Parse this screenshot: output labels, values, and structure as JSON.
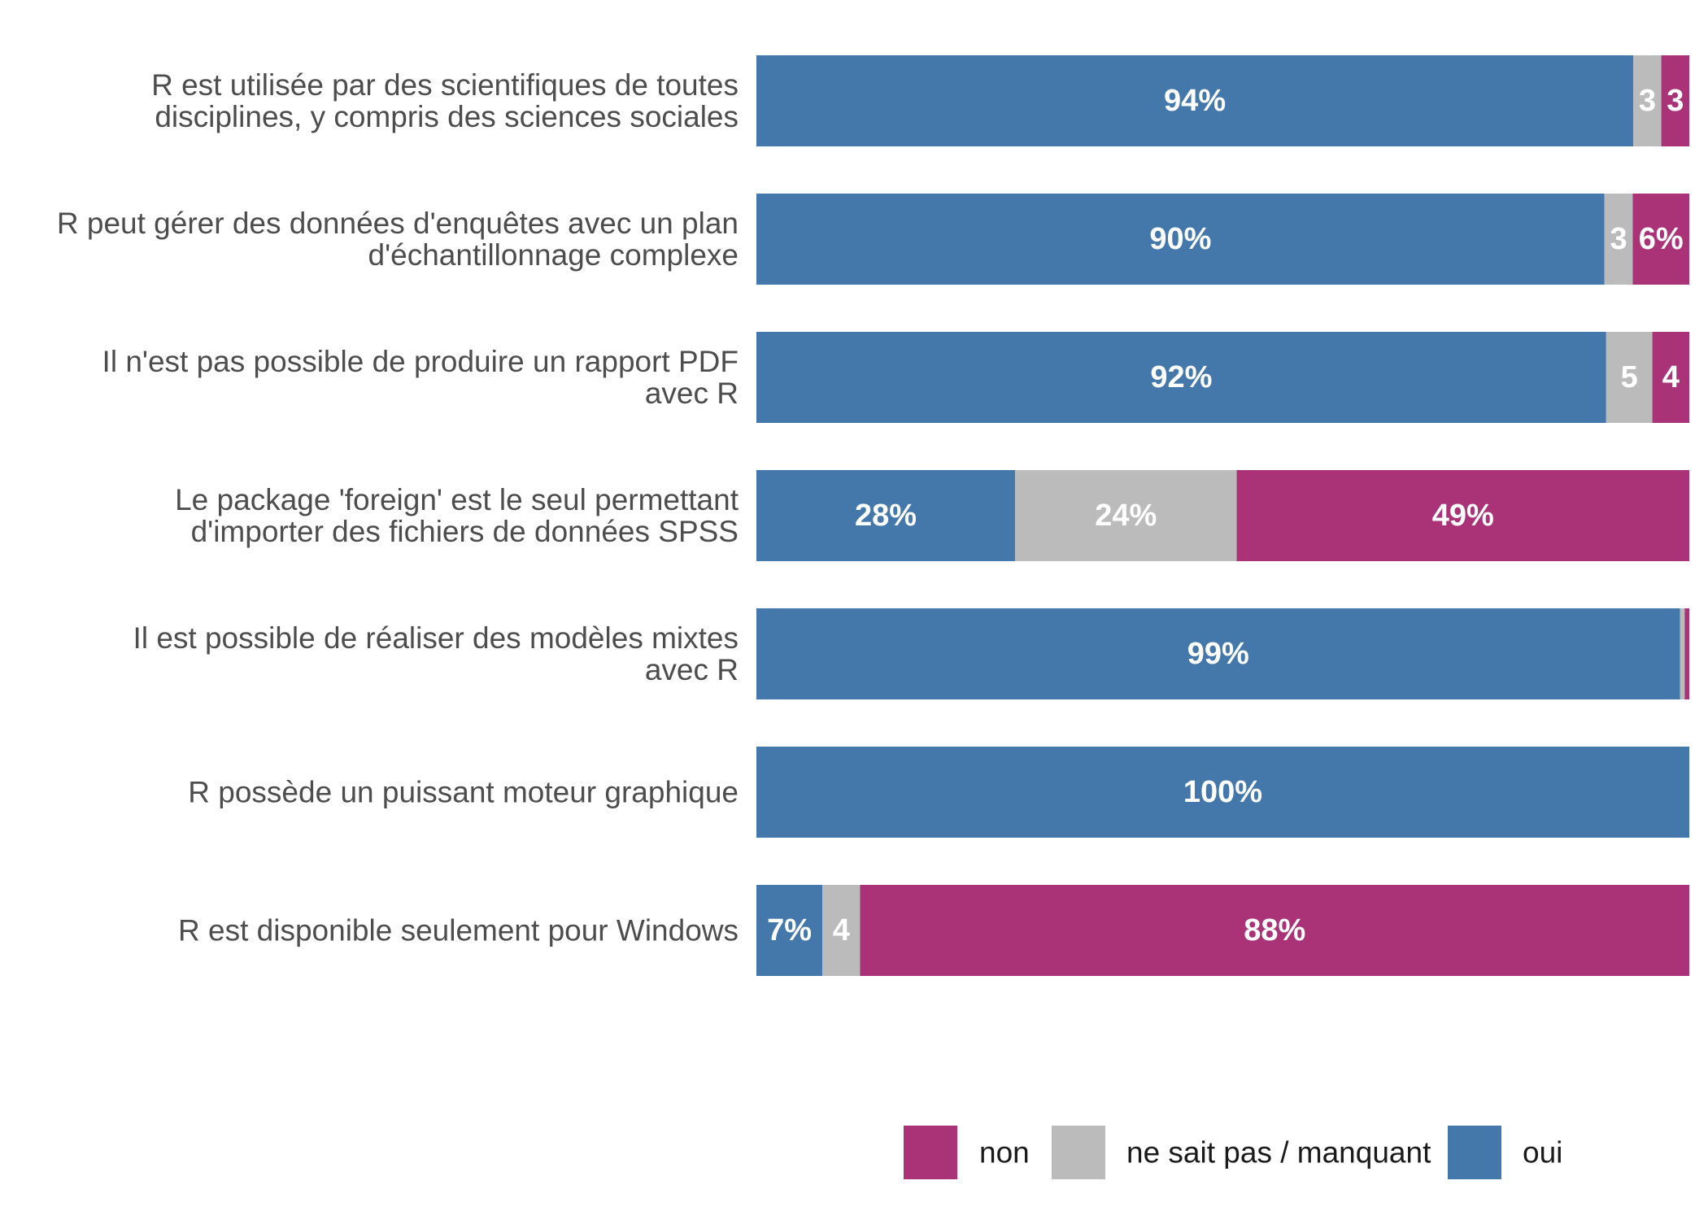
{
  "chart_data": {
    "type": "bar",
    "orientation": "horizontal",
    "stacked": true,
    "categories": [
      [
        "R est utilisée par des scientifiques de toutes",
        "disciplines, y compris des sciences sociales"
      ],
      [
        "R peut gérer des données d'enquêtes avec un plan",
        "d'échantillonnage complexe"
      ],
      [
        "Il n'est pas possible de produire un rapport PDF",
        "avec R"
      ],
      [
        "Le package 'foreign' est le seul permettant",
        "d'importer des fichiers de données SPSS"
      ],
      [
        "Il est possible de réaliser des modèles mixtes",
        "avec R"
      ],
      [
        "R possède un puissant moteur graphique"
      ],
      [
        "R est disponible seulement pour Windows"
      ]
    ],
    "series": [
      {
        "name": "oui",
        "color": "#4477AA",
        "values": [
          94,
          90,
          92,
          28,
          99,
          100,
          7
        ],
        "labels": [
          "94%",
          "90%",
          "92%",
          "28%",
          "99%",
          "100%",
          "7%"
        ]
      },
      {
        "name": "ne sait pas / manquant",
        "color": "#BBBBBB",
        "values": [
          3,
          3,
          5,
          24,
          0.5,
          0,
          4
        ],
        "labels": [
          "3",
          "3",
          "5",
          "24%",
          "",
          "",
          "4"
        ]
      },
      {
        "name": "non",
        "color": "#AA3377",
        "values": [
          3,
          6,
          4,
          49,
          0.5,
          0,
          88
        ],
        "labels": [
          "3",
          "6%",
          "4",
          "49%",
          "",
          "",
          "88%"
        ]
      }
    ],
    "legend": {
      "position": "bottom",
      "order": [
        "non",
        "ne sait pas / manquant",
        "oui"
      ]
    },
    "grid": false,
    "xlim": [
      0,
      100
    ],
    "title": "",
    "xlabel": "",
    "ylabel": ""
  }
}
